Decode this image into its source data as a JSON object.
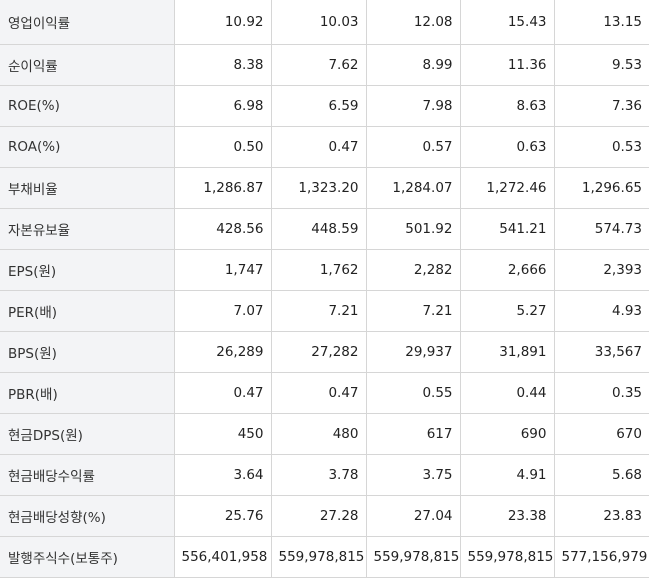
{
  "rows": [
    {
      "label": "영업이익률",
      "values": [
        "10.92",
        "10.03",
        "12.08",
        "15.43",
        "13.15"
      ]
    },
    {
      "label": "순이익률",
      "values": [
        "8.38",
        "7.62",
        "8.99",
        "11.36",
        "9.53"
      ]
    },
    {
      "label": "ROE(%)",
      "values": [
        "6.98",
        "6.59",
        "7.98",
        "8.63",
        "7.36"
      ]
    },
    {
      "label": "ROA(%)",
      "values": [
        "0.50",
        "0.47",
        "0.57",
        "0.63",
        "0.53"
      ]
    },
    {
      "label": "부채비율",
      "values": [
        "1,286.87",
        "1,323.20",
        "1,284.07",
        "1,272.46",
        "1,296.65"
      ]
    },
    {
      "label": "자본유보율",
      "values": [
        "428.56",
        "448.59",
        "501.92",
        "541.21",
        "574.73"
      ]
    },
    {
      "label": "EPS(원)",
      "values": [
        "1,747",
        "1,762",
        "2,282",
        "2,666",
        "2,393"
      ]
    },
    {
      "label": "PER(배)",
      "values": [
        "7.07",
        "7.21",
        "7.21",
        "5.27",
        "4.93"
      ]
    },
    {
      "label": "BPS(원)",
      "values": [
        "26,289",
        "27,282",
        "29,937",
        "31,891",
        "33,567"
      ]
    },
    {
      "label": "PBR(배)",
      "values": [
        "0.47",
        "0.47",
        "0.55",
        "0.44",
        "0.35"
      ]
    },
    {
      "label": "현금DPS(원)",
      "values": [
        "450",
        "480",
        "617",
        "690",
        "670"
      ]
    },
    {
      "label": "현금배당수익률",
      "values": [
        "3.64",
        "3.78",
        "3.75",
        "4.91",
        "5.68"
      ]
    },
    {
      "label": "현금배당성향(%)",
      "values": [
        "25.76",
        "27.28",
        "27.04",
        "23.38",
        "23.83"
      ]
    },
    {
      "label": "발행주식수(보통주)",
      "values": [
        "556,401,958",
        "559,978,815",
        "559,978,815",
        "559,978,815",
        "577,156,979"
      ]
    }
  ]
}
